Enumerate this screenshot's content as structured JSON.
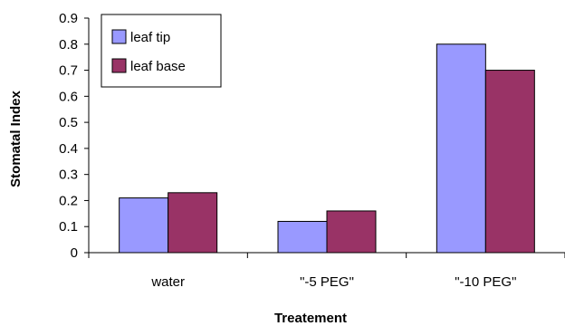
{
  "chart_data": {
    "type": "bar",
    "title": "",
    "xlabel": "Treatement",
    "ylabel": "Stomatal Index",
    "categories": [
      "water",
      "\"-5 PEG\"",
      "\"-10 PEG\""
    ],
    "series": [
      {
        "name": "leaf tip",
        "color": "#9999FF",
        "values": [
          0.21,
          0.12,
          0.8
        ]
      },
      {
        "name": "leaf base",
        "color": "#993366",
        "values": [
          0.23,
          0.16,
          0.7
        ]
      }
    ],
    "ylim": [
      0,
      0.9
    ],
    "yticks": [
      "0",
      "0.1",
      "0.2",
      "0.3",
      "0.4",
      "0.5",
      "0.6",
      "0.7",
      "0.8",
      "0.9"
    ],
    "grid": false,
    "legend_position": "top-left"
  }
}
